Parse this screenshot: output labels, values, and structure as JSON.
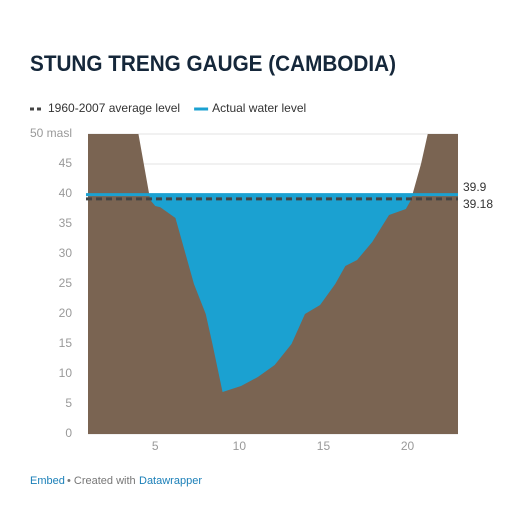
{
  "chart_data": {
    "type": "area",
    "title": "STUNG TRENG GAUGE (CAMBODIA)",
    "x": [
      1,
      4,
      4.7,
      5,
      5.3,
      6.2,
      6.8,
      7.3,
      8,
      8.4,
      9,
      10.1,
      11.1,
      12.1,
      13.1,
      13.9,
      14.8,
      15.7,
      16.3,
      17,
      17.9,
      18.9,
      19.9,
      20.2,
      20.8,
      21.2,
      23
    ],
    "bed": {
      "color": "#7a6452",
      "values": [
        50,
        50,
        39,
        38,
        37.8,
        36,
        30,
        25,
        20,
        15,
        7,
        8,
        9.5,
        11.5,
        15,
        20,
        21.5,
        25,
        28,
        29,
        32,
        36.5,
        37.5,
        39,
        45,
        50,
        50
      ]
    },
    "water_color": "#1ba1d1",
    "lines": [
      {
        "name": "1960-2007 average level",
        "value": 39.18,
        "color": "#444444",
        "dashed": true
      },
      {
        "name": "Actual water level",
        "value": 39.9,
        "color": "#1ba1d1",
        "dashed": false
      }
    ],
    "xlim": [
      1,
      23
    ],
    "xticks": [
      5,
      10,
      15,
      20
    ],
    "ylim": [
      0,
      50
    ],
    "yticks": [
      0,
      5,
      10,
      15,
      20,
      25,
      30,
      35,
      40,
      45,
      {
        "value": 50,
        "label": "50 masl"
      }
    ],
    "grid": true
  },
  "footer": {
    "embed": "Embed",
    "credit": "• Created with",
    "tool": "Datawrapper"
  }
}
